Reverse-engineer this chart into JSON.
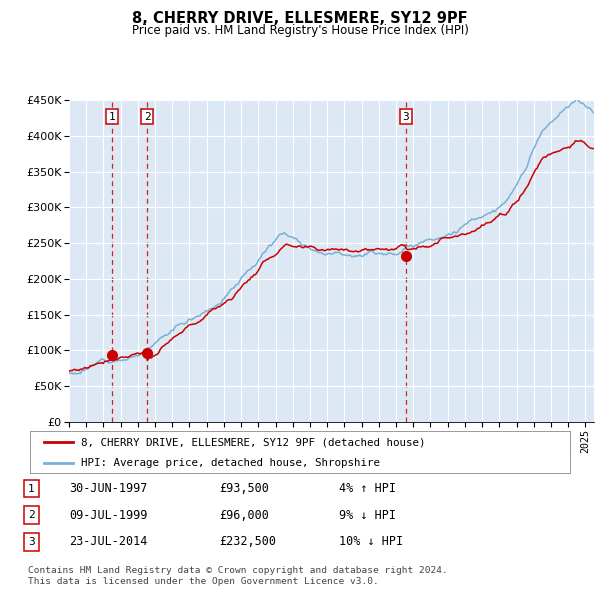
{
  "title": "8, CHERRY DRIVE, ELLESMERE, SY12 9PF",
  "subtitle": "Price paid vs. HM Land Registry's House Price Index (HPI)",
  "ylim": [
    0,
    450000
  ],
  "yticks": [
    0,
    50000,
    100000,
    150000,
    200000,
    250000,
    300000,
    350000,
    400000,
    450000
  ],
  "hpi_color": "#7bafd4",
  "sale_color": "#cc0000",
  "vline_color": "#cc0000",
  "plot_bg": "#dce9f5",
  "grid_color": "#ffffff",
  "legend_label_sale": "8, CHERRY DRIVE, ELLESMERE, SY12 9PF (detached house)",
  "legend_label_hpi": "HPI: Average price, detached house, Shropshire",
  "sales": [
    {
      "date_num": 1997.5,
      "price": 93500,
      "label": "1"
    },
    {
      "date_num": 1999.54,
      "price": 96000,
      "label": "2"
    },
    {
      "date_num": 2014.56,
      "price": 232500,
      "label": "3"
    }
  ],
  "sale_annotations": [
    {
      "label": "1",
      "date": "30-JUN-1997",
      "price": "£93,500",
      "pct": "4% ↑ HPI"
    },
    {
      "label": "2",
      "date": "09-JUL-1999",
      "price": "£96,000",
      "pct": "9% ↓ HPI"
    },
    {
      "label": "3",
      "date": "23-JUL-2014",
      "price": "£232,500",
      "pct": "10% ↓ HPI"
    }
  ],
  "footnote": "Contains HM Land Registry data © Crown copyright and database right 2024.\nThis data is licensed under the Open Government Licence v3.0.",
  "xmin": 1995.0,
  "xmax": 2025.5,
  "hpi_seed": 12,
  "sale_seed": 77
}
